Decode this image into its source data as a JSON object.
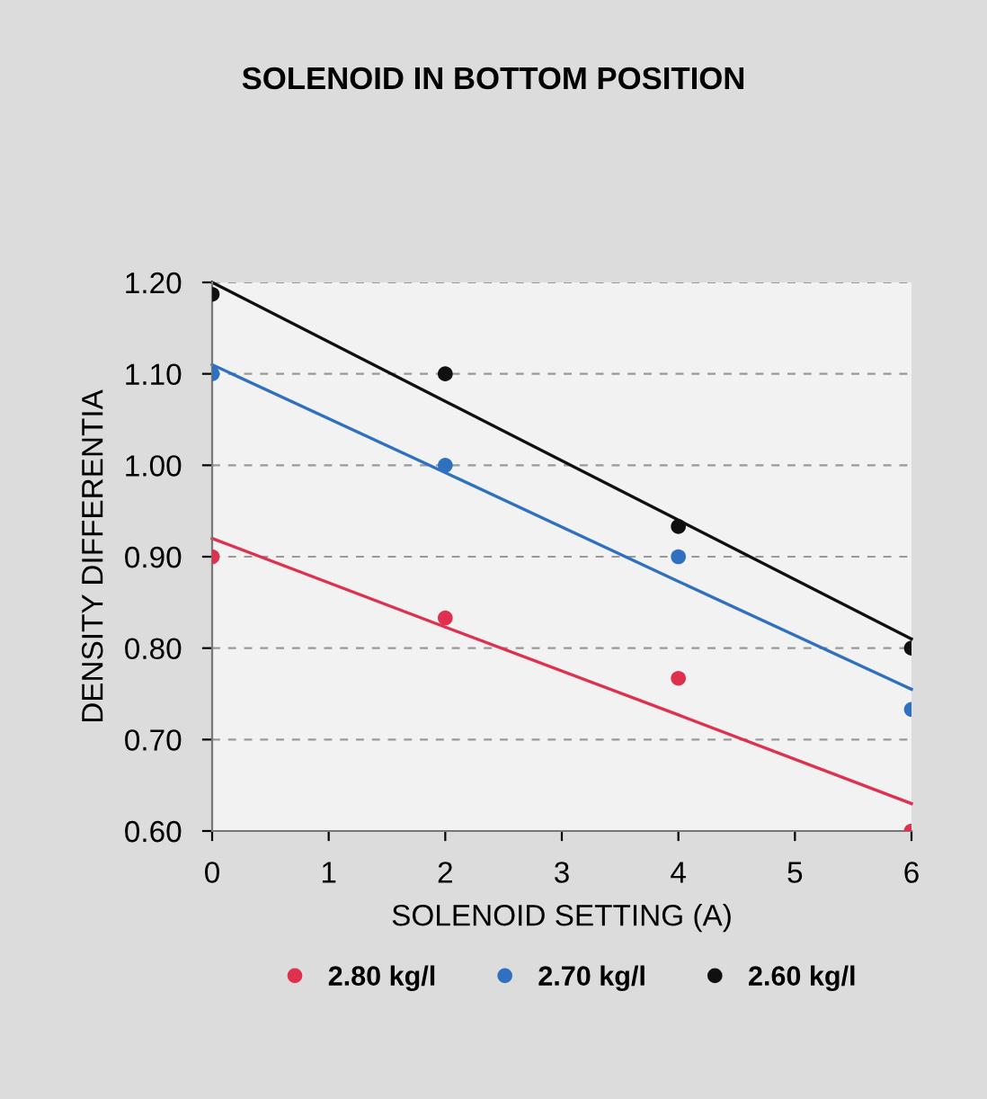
{
  "chart_data": {
    "type": "scatter",
    "title": "SOLENOID IN BOTTOM POSITION",
    "xlabel": "SOLENOID SETTING (A)",
    "ylabel": "DENSITY DIFFERENTIA",
    "x": [
      0,
      2,
      4,
      6
    ],
    "series": [
      {
        "name": "2.80 kg/l",
        "color": "#e03050",
        "values": [
          0.9,
          0.833,
          0.767,
          0.6
        ]
      },
      {
        "name": "2.70 kg/l",
        "color": "#3070c0",
        "values": [
          1.1,
          1.0,
          0.9,
          0.733
        ]
      },
      {
        "name": "2.60 kg/l",
        "color": "#101010",
        "values": [
          1.187,
          1.1,
          0.933,
          0.8
        ]
      },
      {
        "type": "line",
        "marker": "none",
        "color": "#e03050",
        "values": [
          0.92,
          0.823,
          0.727,
          0.63
        ]
      },
      {
        "type": "line",
        "marker": "none",
        "color": "#3070c0",
        "values": [
          1.11,
          0.992,
          0.873,
          0.755
        ]
      },
      {
        "type": "line",
        "marker": "none",
        "color": "#101010",
        "values": [
          1.2,
          1.07,
          0.94,
          0.81
        ]
      }
    ],
    "xlim": [
      0,
      6
    ],
    "xticks": [
      0,
      1,
      2,
      3,
      4,
      5,
      6
    ],
    "ylim": [
      0.6,
      1.2
    ],
    "yticks": [
      {
        "value": 0.6,
        "label": "0.60"
      },
      {
        "value": 0.7,
        "label": "0.70"
      },
      {
        "value": 0.8,
        "label": "0.80"
      },
      {
        "value": 0.9,
        "label": "0.90"
      },
      {
        "value": 1.0,
        "label": "1.00"
      },
      {
        "value": 1.1,
        "label": "1.10"
      },
      {
        "value": 1.2,
        "label": "1.20"
      }
    ],
    "grid": "y",
    "legend": "bottom",
    "marker": "circle"
  }
}
